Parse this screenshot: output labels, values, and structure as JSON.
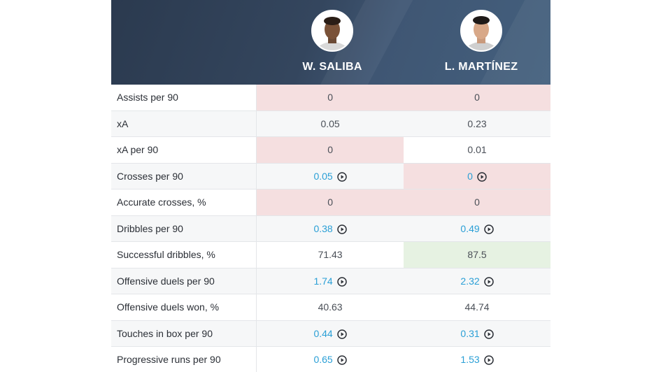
{
  "players": [
    {
      "name": "W. SALIBA"
    },
    {
      "name": "L. MARTÍNEZ"
    }
  ],
  "stats": [
    {
      "label": "Assists per 90",
      "values": [
        "0",
        "0"
      ],
      "hl": [
        "red",
        "red"
      ],
      "play": [
        false,
        false
      ]
    },
    {
      "label": "xA",
      "values": [
        "0.05",
        "0.23"
      ],
      "hl": [
        "",
        ""
      ],
      "play": [
        false,
        false
      ]
    },
    {
      "label": "xA per 90",
      "values": [
        "0",
        "0.01"
      ],
      "hl": [
        "red",
        ""
      ],
      "play": [
        false,
        false
      ]
    },
    {
      "label": "Crosses per 90",
      "values": [
        "0.05",
        "0"
      ],
      "hl": [
        "",
        "red"
      ],
      "play": [
        true,
        true
      ]
    },
    {
      "label": "Accurate crosses, %",
      "values": [
        "0",
        "0"
      ],
      "hl": [
        "red",
        "red"
      ],
      "play": [
        false,
        false
      ]
    },
    {
      "label": "Dribbles per 90",
      "values": [
        "0.38",
        "0.49"
      ],
      "hl": [
        "",
        ""
      ],
      "play": [
        true,
        true
      ]
    },
    {
      "label": "Successful dribbles, %",
      "values": [
        "71.43",
        "87.5"
      ],
      "hl": [
        "",
        "green"
      ],
      "play": [
        false,
        false
      ]
    },
    {
      "label": "Offensive duels per 90",
      "values": [
        "1.74",
        "2.32"
      ],
      "hl": [
        "",
        ""
      ],
      "play": [
        true,
        true
      ]
    },
    {
      "label": "Offensive duels won, %",
      "values": [
        "40.63",
        "44.74"
      ],
      "hl": [
        "",
        ""
      ],
      "play": [
        false,
        false
      ]
    },
    {
      "label": "Touches in box per 90",
      "values": [
        "0.44",
        "0.31"
      ],
      "hl": [
        "",
        ""
      ],
      "play": [
        true,
        true
      ]
    },
    {
      "label": "Progressive runs per 90",
      "values": [
        "0.65",
        "1.53"
      ],
      "hl": [
        "",
        ""
      ],
      "play": [
        true,
        true
      ]
    }
  ],
  "colors": {
    "header": "#34465e",
    "link": "#2a9fd6",
    "worse": "#f5dfe0",
    "better": "#e6f2e2"
  },
  "icons": [
    "play-video-icon"
  ]
}
